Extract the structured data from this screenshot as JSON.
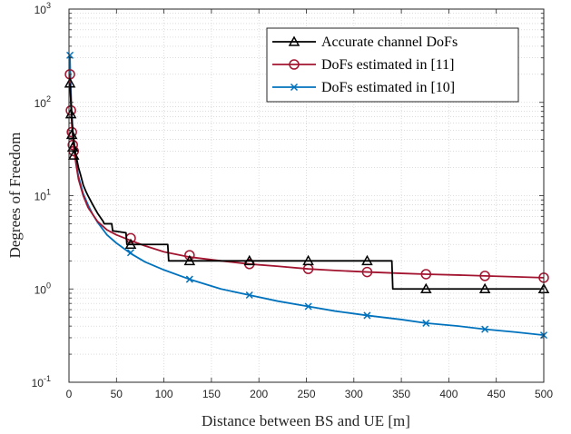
{
  "chart_data": {
    "type": "line",
    "xlabel": "Distance between BS and UE [m]",
    "ylabel": "Degrees of Freedom",
    "xlim": [
      0,
      500
    ],
    "ylim": [
      0.1,
      1000
    ],
    "yscale": "log",
    "grid": true,
    "legend_position": "top-right",
    "x_ticks": [
      "0",
      "50",
      "100",
      "150",
      "200",
      "250",
      "300",
      "350",
      "400",
      "450",
      "500"
    ],
    "y_ticks": [
      {
        "base": "10",
        "exp": "-1",
        "value": 0.1
      },
      {
        "base": "10",
        "exp": "0",
        "value": 1
      },
      {
        "base": "10",
        "exp": "1",
        "value": 10
      },
      {
        "base": "10",
        "exp": "2",
        "value": 100
      },
      {
        "base": "10",
        "exp": "3",
        "value": 1000
      }
    ],
    "series": [
      {
        "name": "Accurate channel DoFs",
        "color": "#000000",
        "marker": "triangle",
        "line": [
          [
            1,
            160
          ],
          [
            1.5,
            125
          ],
          [
            2,
            100
          ],
          [
            2.5,
            80
          ],
          [
            3,
            68
          ],
          [
            3.5,
            58
          ],
          [
            4,
            50
          ],
          [
            5,
            40
          ],
          [
            6,
            33
          ],
          [
            7,
            28
          ],
          [
            8,
            25
          ],
          [
            10,
            20
          ],
          [
            12,
            17
          ],
          [
            15,
            13
          ],
          [
            18,
            11
          ],
          [
            20,
            10
          ],
          [
            25,
            8
          ],
          [
            30,
            6.5
          ],
          [
            36,
            5.3
          ],
          [
            37,
            5
          ],
          [
            45,
            5
          ],
          [
            46,
            4.2
          ],
          [
            60,
            4
          ],
          [
            61,
            3
          ],
          [
            104,
            3
          ],
          [
            105,
            2
          ],
          [
            340,
            2
          ],
          [
            341,
            1
          ],
          [
            500,
            1
          ]
        ],
        "markers": [
          [
            1,
            160
          ],
          [
            2,
            75
          ],
          [
            3,
            45
          ],
          [
            4,
            33
          ],
          [
            5,
            27
          ],
          [
            65,
            3
          ],
          [
            127,
            2
          ],
          [
            190,
            2
          ],
          [
            252,
            2
          ],
          [
            314,
            2
          ],
          [
            376,
            1
          ],
          [
            438,
            1
          ],
          [
            500,
            1
          ]
        ]
      },
      {
        "name": "DoFs estimated in [11]",
        "color": "#a2142f",
        "marker": "circle",
        "line": [
          [
            1,
            200
          ],
          [
            1.5,
            140
          ],
          [
            2,
            100
          ],
          [
            2.5,
            75
          ],
          [
            3,
            58
          ],
          [
            3.5,
            47
          ],
          [
            4,
            40
          ],
          [
            5,
            33
          ],
          [
            6,
            27
          ],
          [
            8,
            20
          ],
          [
            10,
            15
          ],
          [
            15,
            10
          ],
          [
            20,
            7.5
          ],
          [
            30,
            5.3
          ],
          [
            40,
            4.3
          ],
          [
            50,
            3.8
          ],
          [
            65,
            3.3
          ],
          [
            80,
            2.9
          ],
          [
            100,
            2.5
          ],
          [
            127,
            2.2
          ],
          [
            160,
            2.0
          ],
          [
            190,
            1.85
          ],
          [
            220,
            1.75
          ],
          [
            252,
            1.64
          ],
          [
            280,
            1.58
          ],
          [
            314,
            1.52
          ],
          [
            350,
            1.47
          ],
          [
            376,
            1.44
          ],
          [
            410,
            1.41
          ],
          [
            438,
            1.38
          ],
          [
            470,
            1.35
          ],
          [
            500,
            1.32
          ]
        ],
        "markers": [
          [
            1,
            200
          ],
          [
            2,
            82
          ],
          [
            3,
            48
          ],
          [
            4,
            35
          ],
          [
            5,
            30
          ],
          [
            65,
            3.5
          ],
          [
            127,
            2.3
          ],
          [
            190,
            1.85
          ],
          [
            252,
            1.64
          ],
          [
            314,
            1.52
          ],
          [
            376,
            1.44
          ],
          [
            438,
            1.38
          ],
          [
            500,
            1.32
          ]
        ]
      },
      {
        "name": "DoFs estimated in [10]",
        "color": "#0072bd",
        "marker": "x",
        "line": [
          [
            1,
            320
          ],
          [
            1.5,
            200
          ],
          [
            2,
            140
          ],
          [
            2.5,
            100
          ],
          [
            3,
            75
          ],
          [
            3.5,
            60
          ],
          [
            4,
            47
          ],
          [
            5,
            36
          ],
          [
            6,
            29
          ],
          [
            8,
            21
          ],
          [
            10,
            16
          ],
          [
            15,
            10.5
          ],
          [
            20,
            8
          ],
          [
            25,
            6.3
          ],
          [
            30,
            5.2
          ],
          [
            40,
            3.8
          ],
          [
            50,
            3.1
          ],
          [
            65,
            2.4
          ],
          [
            80,
            1.95
          ],
          [
            100,
            1.6
          ],
          [
            127,
            1.27
          ],
          [
            160,
            1.0
          ],
          [
            190,
            0.86
          ],
          [
            220,
            0.74
          ],
          [
            252,
            0.65
          ],
          [
            280,
            0.58
          ],
          [
            314,
            0.52
          ],
          [
            350,
            0.47
          ],
          [
            376,
            0.43
          ],
          [
            410,
            0.4
          ],
          [
            438,
            0.37
          ],
          [
            470,
            0.345
          ],
          [
            500,
            0.32
          ]
        ],
        "markers": [
          [
            1,
            320
          ],
          [
            65,
            2.45
          ],
          [
            127,
            1.27
          ],
          [
            190,
            0.86
          ],
          [
            252,
            0.65
          ],
          [
            314,
            0.52
          ],
          [
            376,
            0.43
          ],
          [
            438,
            0.37
          ],
          [
            500,
            0.32
          ]
        ]
      }
    ]
  }
}
